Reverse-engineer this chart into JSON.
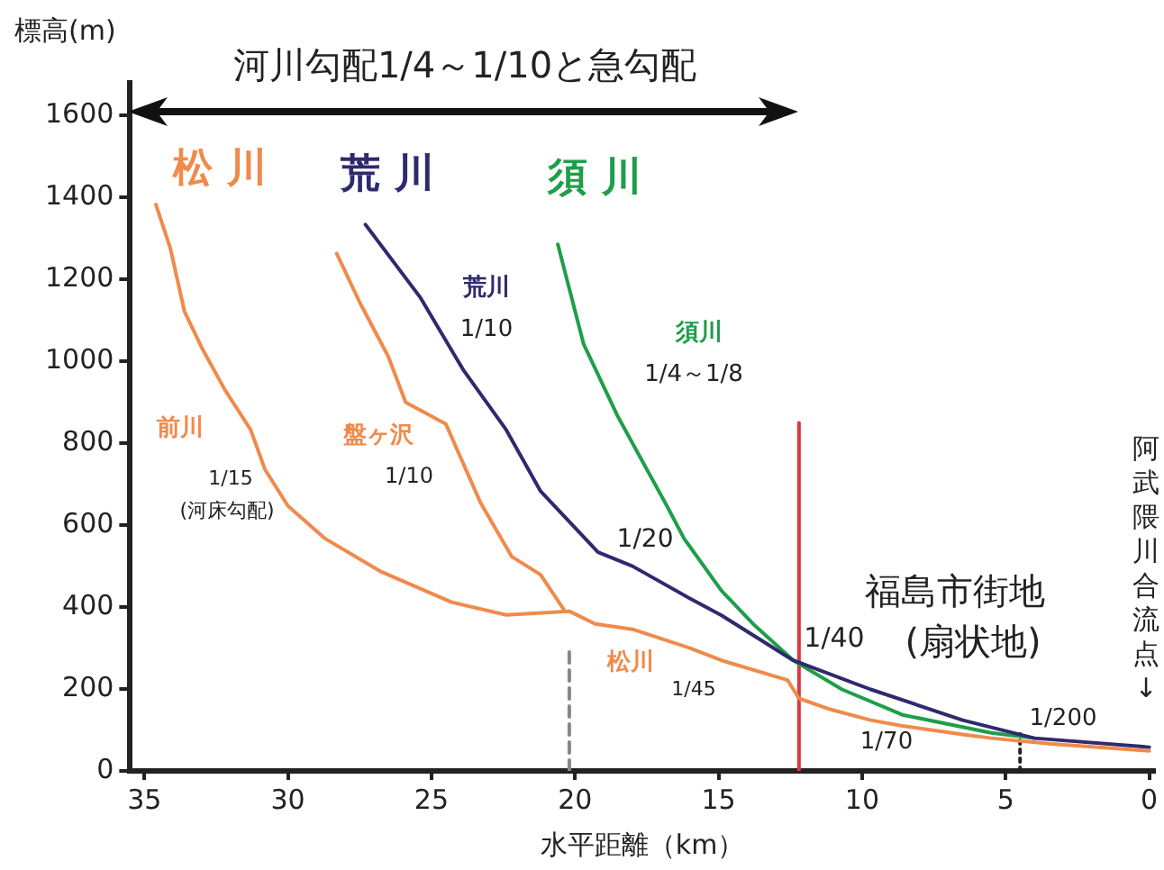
{
  "chart_data": {
    "type": "line",
    "xlabel": "水平距離（km）",
    "ylabel": "標高(m)",
    "xlim": [
      35.5,
      -0.2
    ],
    "xticks": [
      35,
      30,
      25,
      20,
      15,
      10,
      5,
      0
    ],
    "ylim": [
      0,
      1680
    ],
    "yticks": [
      0,
      200,
      400,
      600,
      800,
      1000,
      1200,
      1400,
      1600
    ],
    "grid": false,
    "legend": false,
    "marker": "none",
    "line_style": "solid",
    "series": [
      {
        "name": "松川",
        "color": "#f08a4b",
        "x": [
          34.6,
          34.1,
          33.6,
          33.0,
          32.2,
          31.3,
          30.8,
          30.0,
          28.7,
          26.8,
          24.3,
          22.4,
          20.2,
          19.3,
          18.0,
          16.0,
          14.9,
          12.6,
          12.2,
          11.1,
          9.7,
          8.6,
          6.5,
          5.5,
          3.4,
          0
        ],
        "values": [
          1383,
          1277,
          1121,
          1033,
          931,
          833,
          736,
          647,
          567,
          488,
          412,
          381,
          390,
          359,
          346,
          300,
          270,
          222,
          177,
          150,
          124,
          110,
          89,
          80,
          66,
          49
        ]
      },
      {
        "name": "盤ヶ沢",
        "color": "#f08a4b",
        "x": [
          28.3,
          27.5,
          26.5,
          25.9,
          24.5,
          23.3,
          22.2,
          21.2,
          20.4
        ],
        "values": [
          1263,
          1144,
          1011,
          900,
          847,
          656,
          523,
          479,
          395
        ]
      },
      {
        "name": "荒川",
        "color": "#2e2a6e",
        "x": [
          27.3,
          25.4,
          23.9,
          22.4,
          21.2,
          19.2,
          18.0,
          16.0,
          14.9,
          12.4,
          9.7,
          6.5,
          4.0,
          0
        ],
        "values": [
          1334,
          1157,
          980,
          833,
          683,
          534,
          500,
          421,
          380,
          270,
          199,
          124,
          80,
          58
        ]
      },
      {
        "name": "須川",
        "color": "#1e9e4a",
        "x": [
          20.6,
          19.7,
          18.5,
          16.8,
          16.2,
          14.9,
          13.8,
          12.4,
          10.7,
          8.6,
          5.5,
          4.0
        ],
        "values": [
          1286,
          1042,
          864,
          647,
          567,
          440,
          359,
          270,
          199,
          137,
          93,
          80
        ]
      },
      {
        "color": "#d9393e",
        "x": [
          12.2,
          12.2
        ],
        "values": [
          0,
          850
        ]
      },
      {
        "color": "#888888",
        "line_style": "dashed",
        "x": [
          20.2,
          20.2
        ],
        "values": [
          0,
          300
        ]
      },
      {
        "color": "#222222",
        "line_style": "dotted",
        "x": [
          4.5,
          4.5
        ],
        "values": [
          0,
          90
        ]
      }
    ],
    "annotations": [
      "松 川",
      "荒 川",
      "須 川",
      "前川",
      "1/15",
      "(河床勾配)",
      "1/10",
      "1/10",
      "1/4～1/8",
      "1/20",
      "1/45",
      "福島市街地",
      "1/40",
      "(扇状地)",
      "1/70",
      "1/200",
      "阿武隈川合流点↓",
      "河川勾配1/4～1/10と急勾配"
    ]
  }
}
